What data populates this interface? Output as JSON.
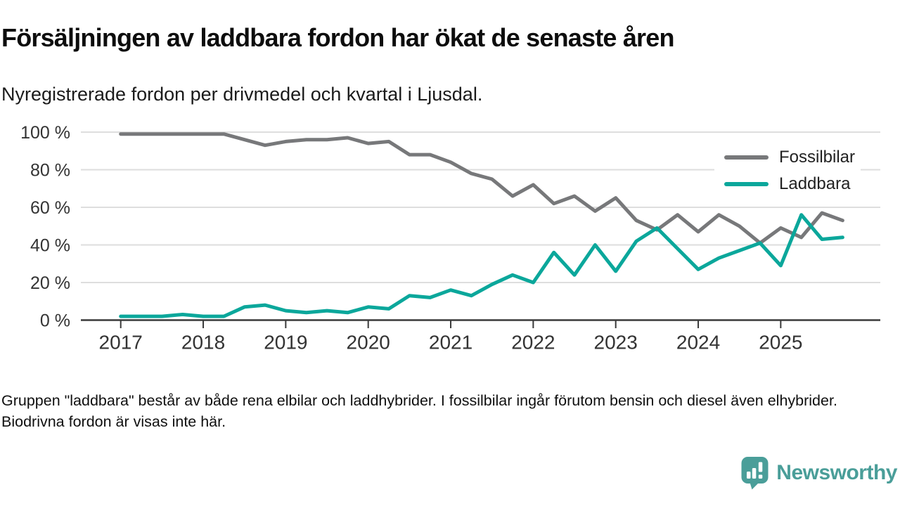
{
  "title": "Försäljningen av laddbara fordon har ökat de senaste åren",
  "subtitle": "Nyregistrerade fordon per drivmedel och kvartal i Ljusdal.",
  "footnote": "Gruppen \"laddbara\" består av både rena elbilar och laddhybrider. I fossilbilar ingår förutom bensin och diesel även elhybrider. Biodrivna fordon är visas inte här.",
  "logo": {
    "text": "Newsworthy"
  },
  "colors": {
    "fossil_line": "#77787a",
    "laddbara_line": "#0ba79b",
    "gridline": "#dedede",
    "axis": "#3a3a3a",
    "tick_text": "#333333",
    "logo_teal": "#4a9e99"
  },
  "chart_data": {
    "type": "line",
    "unit": "%",
    "grid": true,
    "legend_position": "top-right",
    "ylim": [
      0,
      100
    ],
    "yticks": [
      {
        "value": 0,
        "label": "0 %"
      },
      {
        "value": 20,
        "label": "20 %"
      },
      {
        "value": 40,
        "label": "40 %"
      },
      {
        "value": 60,
        "label": "60 %"
      },
      {
        "value": 80,
        "label": "80 %"
      },
      {
        "value": 100,
        "label": "100 %"
      }
    ],
    "x_axis_year_labels": [
      "2017",
      "2018",
      "2019",
      "2020",
      "2021",
      "2022",
      "2023",
      "2024",
      "2025"
    ],
    "x": [
      "2017 Q1",
      "2017 Q2",
      "2017 Q3",
      "2017 Q4",
      "2018 Q1",
      "2018 Q2",
      "2018 Q3",
      "2018 Q4",
      "2019 Q1",
      "2019 Q2",
      "2019 Q3",
      "2019 Q4",
      "2020 Q1",
      "2020 Q2",
      "2020 Q3",
      "2020 Q4",
      "2021 Q1",
      "2021 Q2",
      "2021 Q3",
      "2021 Q4",
      "2022 Q1",
      "2022 Q2",
      "2022 Q3",
      "2022 Q4",
      "2023 Q1",
      "2023 Q2",
      "2023 Q3",
      "2023 Q4",
      "2024 Q1",
      "2024 Q2",
      "2024 Q3",
      "2024 Q4",
      "2025 Q1",
      "2025 Q2",
      "2025 Q3",
      "2025 Q4"
    ],
    "series": [
      {
        "name": "Fossilbilar",
        "color": "#77787a",
        "values": [
          99,
          99,
          99,
          99,
          99,
          99,
          96,
          93,
          95,
          96,
          96,
          97,
          94,
          95,
          88,
          88,
          84,
          78,
          75,
          66,
          72,
          62,
          66,
          58,
          65,
          53,
          48,
          56,
          47,
          56,
          50,
          41,
          49,
          44,
          57,
          53
        ]
      },
      {
        "name": "Laddbara",
        "color": "#0ba79b",
        "values": [
          2,
          2,
          2,
          3,
          2,
          2,
          7,
          8,
          5,
          4,
          5,
          4,
          7,
          6,
          13,
          12,
          16,
          13,
          19,
          24,
          20,
          36,
          24,
          40,
          26,
          42,
          49,
          38,
          27,
          33,
          37,
          41,
          29,
          56,
          43,
          44
        ]
      }
    ]
  }
}
